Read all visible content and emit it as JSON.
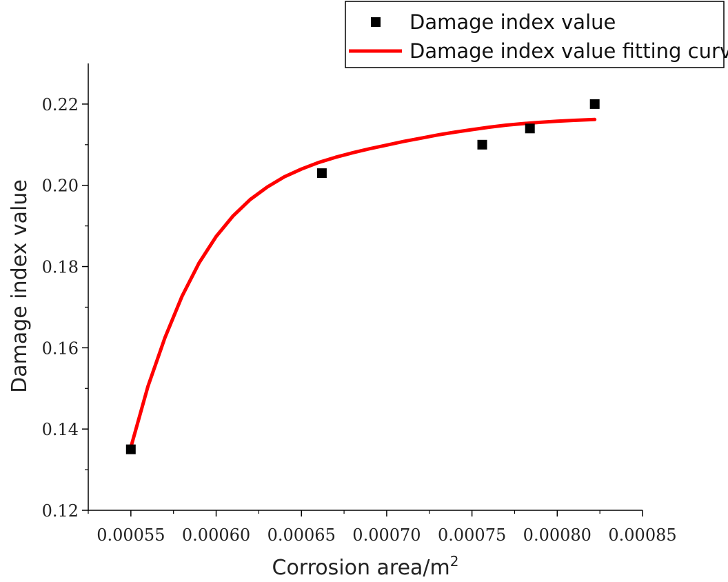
{
  "chart_data": {
    "type": "scatter",
    "title": "",
    "xlabel": "Corrosion area/m",
    "xlabel_superscript": "2",
    "ylabel": "Damage index value",
    "xlim": [
      0.000525,
      0.00085
    ],
    "ylim": [
      0.12,
      0.23
    ],
    "x_ticks": [
      "0.00055",
      "0.00060",
      "0.00065",
      "0.00070",
      "0.00075",
      "0.00080",
      "0.00085"
    ],
    "y_ticks": [
      "0.12",
      "0.14",
      "0.16",
      "0.18",
      "0.20",
      "0.22"
    ],
    "grid": false,
    "legend_position": "top-right",
    "series": [
      {
        "name": "Damage index value",
        "kind": "scatter",
        "marker": "square",
        "color": "#000000",
        "x": [
          0.00055,
          0.000662,
          0.000756,
          0.000784,
          0.000822
        ],
        "y": [
          0.135,
          0.203,
          0.21,
          0.214,
          0.22
        ]
      },
      {
        "name": "Damage index value fitting curve",
        "kind": "line",
        "color": "#ff0000",
        "x": [
          0.00055,
          0.00056,
          0.00057,
          0.00058,
          0.00059,
          0.0006,
          0.00061,
          0.00062,
          0.00063,
          0.00064,
          0.00065,
          0.00066,
          0.00067,
          0.00068,
          0.00069,
          0.0007,
          0.00071,
          0.00072,
          0.00073,
          0.00074,
          0.00075,
          0.00076,
          0.00077,
          0.00078,
          0.00079,
          0.0008,
          0.00081,
          0.000822
        ],
        "y": [
          0.1355,
          0.1505,
          0.1625,
          0.1727,
          0.1809,
          0.1874,
          0.1925,
          0.1965,
          0.1996,
          0.2021,
          0.204,
          0.2056,
          0.2069,
          0.208,
          0.209,
          0.2099,
          0.2108,
          0.2116,
          0.2124,
          0.2131,
          0.2137,
          0.2143,
          0.2148,
          0.2152,
          0.2155,
          0.2158,
          0.216,
          0.2162
        ]
      }
    ]
  }
}
